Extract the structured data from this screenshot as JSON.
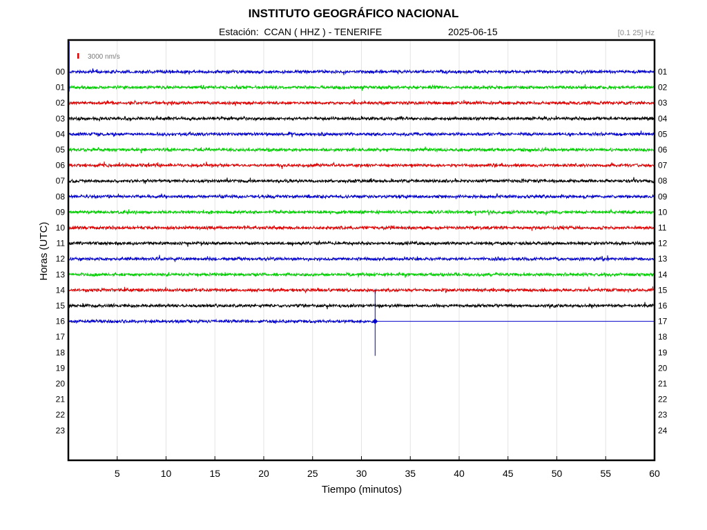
{
  "chart_data": {
    "type": "line",
    "title": "INSTITUTO GEOGRÁFICO NACIONAL",
    "subtitle": "Estación:  CCAN ( HHZ ) - TENERIFE",
    "date": "2025-06-15",
    "filter": "[0.1 25] Hz",
    "scale_label": "3000 nm/s",
    "xlabel": "Tiempo (minutos)",
    "ylabel": "Horas (UTC)",
    "xlim": [
      0,
      60
    ],
    "x_ticks": [
      5,
      10,
      15,
      20,
      25,
      30,
      35,
      40,
      45,
      50,
      55,
      60
    ],
    "left_hour_labels": [
      "00",
      "01",
      "02",
      "03",
      "04",
      "05",
      "06",
      "07",
      "08",
      "09",
      "10",
      "11",
      "12",
      "13",
      "14",
      "15",
      "16",
      "17",
      "18",
      "19",
      "20",
      "21",
      "22",
      "23"
    ],
    "right_hour_labels": [
      "01",
      "02",
      "03",
      "04",
      "05",
      "06",
      "07",
      "08",
      "09",
      "10",
      "11",
      "12",
      "13",
      "14",
      "15",
      "16",
      "17",
      "18",
      "19",
      "20",
      "21",
      "22",
      "23",
      "24"
    ],
    "grid": true,
    "trace_colors": [
      "#0000cc",
      "#00cc00",
      "#dd0000",
      "#000000"
    ],
    "series": [
      {
        "hour": "00",
        "color": "#0000cc",
        "start_min": 0,
        "end_min": 60
      },
      {
        "hour": "01",
        "color": "#00cc00",
        "start_min": 0,
        "end_min": 60
      },
      {
        "hour": "02",
        "color": "#dd0000",
        "start_min": 0,
        "end_min": 60
      },
      {
        "hour": "03",
        "color": "#000000",
        "start_min": 0,
        "end_min": 60
      },
      {
        "hour": "04",
        "color": "#0000cc",
        "start_min": 0,
        "end_min": 60
      },
      {
        "hour": "05",
        "color": "#00cc00",
        "start_min": 0,
        "end_min": 60
      },
      {
        "hour": "06",
        "color": "#dd0000",
        "start_min": 0,
        "end_min": 60
      },
      {
        "hour": "07",
        "color": "#000000",
        "start_min": 0,
        "end_min": 60
      },
      {
        "hour": "08",
        "color": "#0000cc",
        "start_min": 0,
        "end_min": 60
      },
      {
        "hour": "09",
        "color": "#00cc00",
        "start_min": 0,
        "end_min": 60
      },
      {
        "hour": "10",
        "color": "#dd0000",
        "start_min": 0,
        "end_min": 60
      },
      {
        "hour": "11",
        "color": "#000000",
        "start_min": 0,
        "end_min": 60
      },
      {
        "hour": "12",
        "color": "#0000cc",
        "start_min": 0,
        "end_min": 60
      },
      {
        "hour": "13",
        "color": "#00cc00",
        "start_min": 0,
        "end_min": 60
      },
      {
        "hour": "14",
        "color": "#dd0000",
        "start_min": 0,
        "end_min": 60
      },
      {
        "hour": "15",
        "color": "#000000",
        "start_min": 0,
        "end_min": 60
      },
      {
        "hour": "16",
        "color": "#0000cc",
        "start_min": 0,
        "end_min": 31.4
      }
    ],
    "events": [
      {
        "hour": "16",
        "minute": 31.4
      }
    ]
  }
}
